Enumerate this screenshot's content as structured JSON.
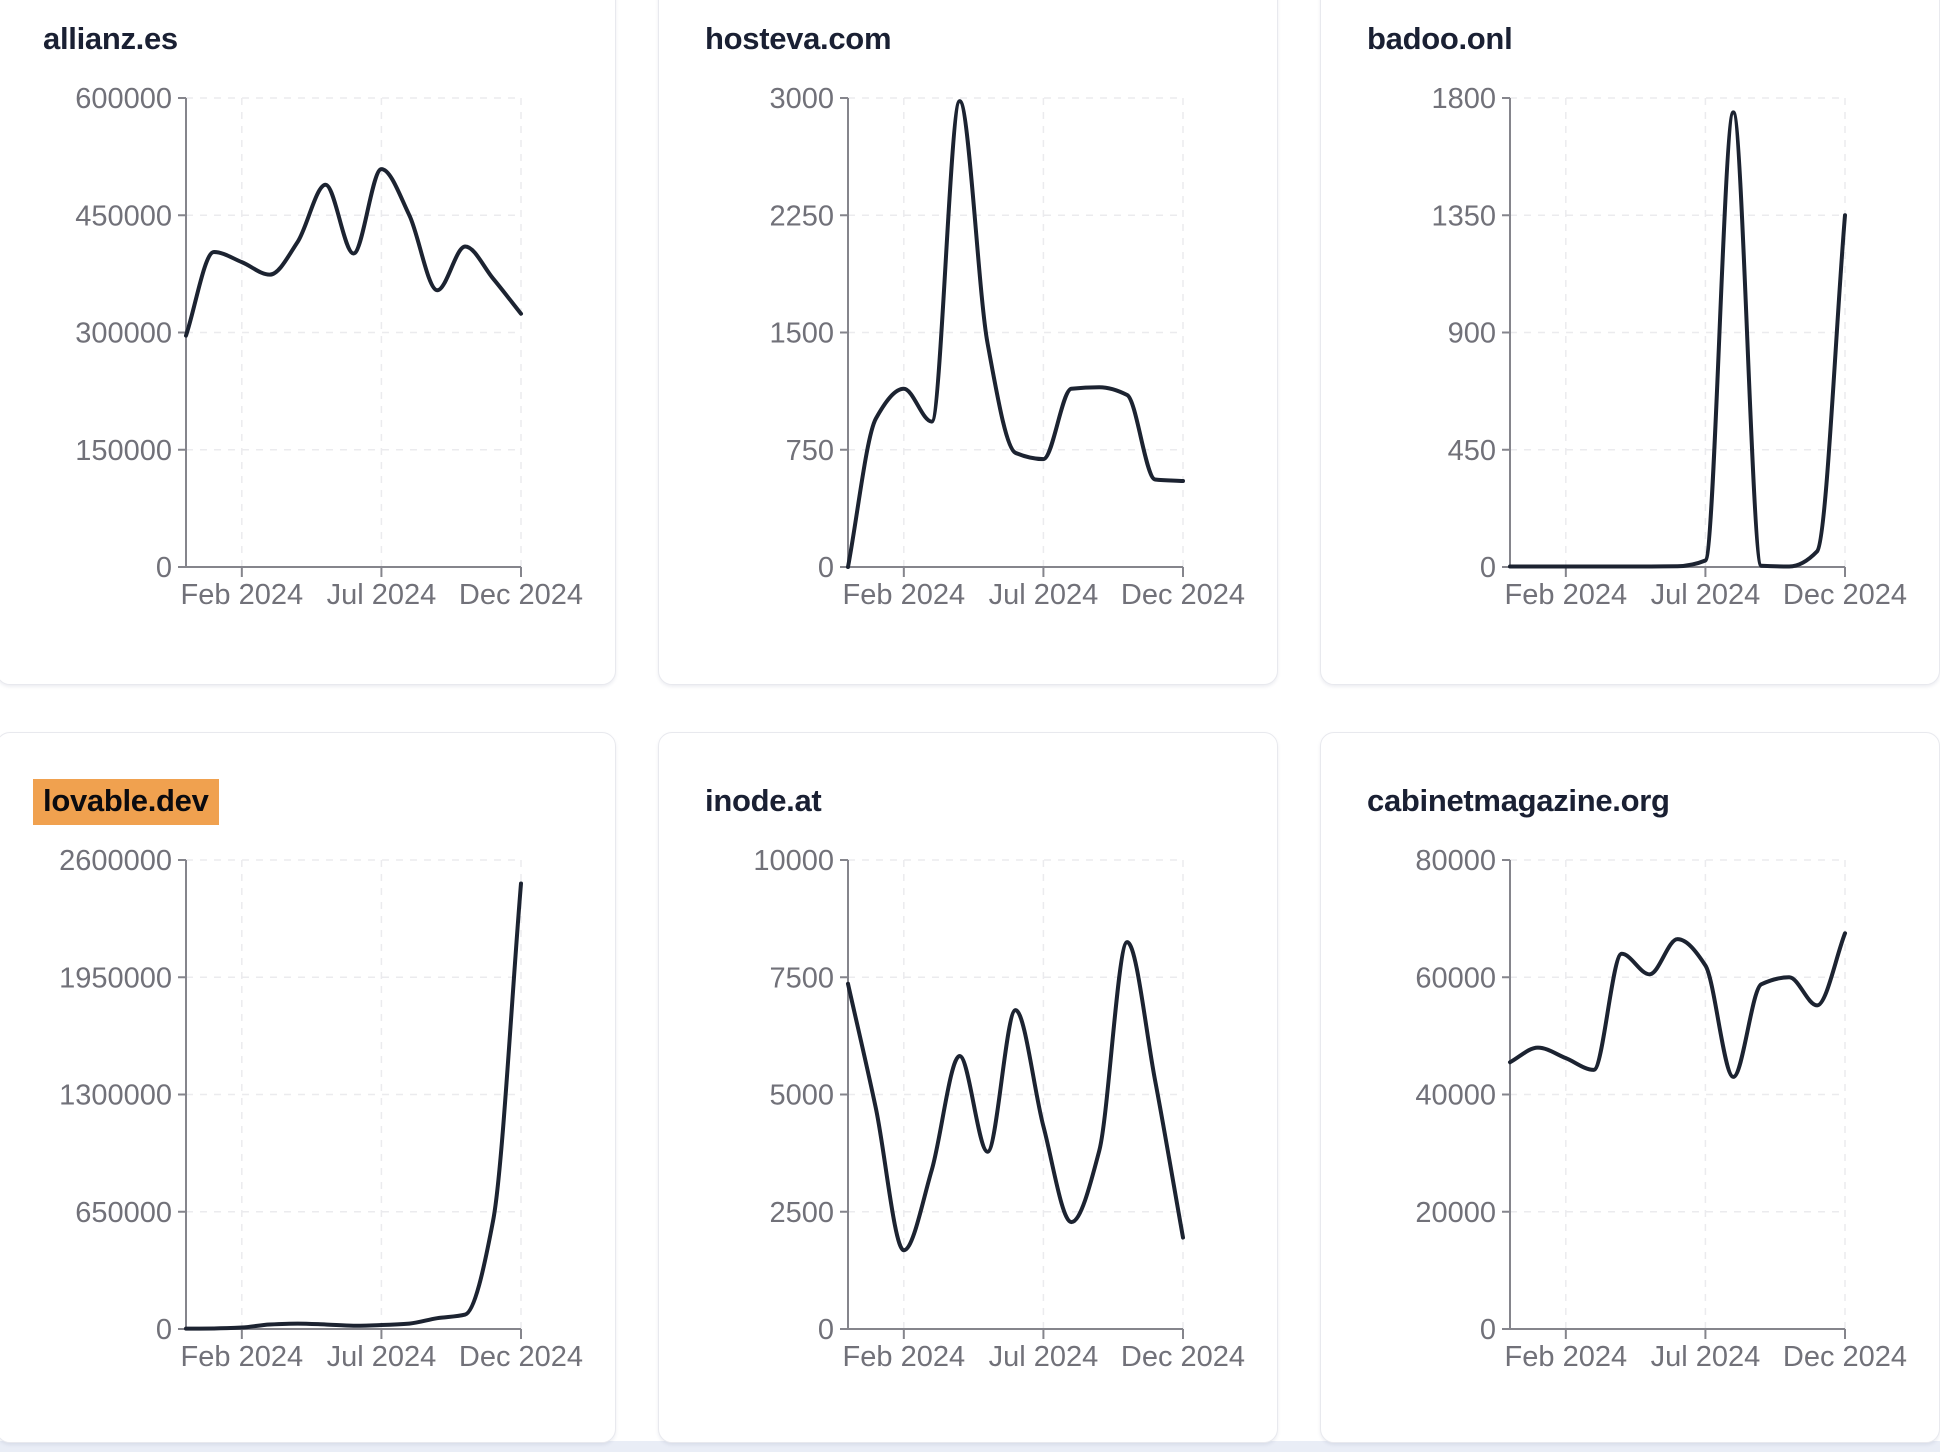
{
  "page": {
    "kind": "traffic-dashboard",
    "bottom_strip_color": "#e9edf6"
  },
  "colors": {
    "line": "#1c2331",
    "grid": "#ebebee",
    "axis": "#85858c",
    "tick_text": "#717179",
    "title_text": "#1a2033",
    "card_border": "#e8e9ee",
    "card_background": "#ffffff",
    "highlight_background": "#f0a14f"
  },
  "chart_data": [
    {
      "type": "line",
      "title": "allianz.es",
      "highlighted": false,
      "x": [
        "Dec 2023",
        "Jan 2024",
        "Feb 2024",
        "Mar 2024",
        "Apr 2024",
        "May 2024",
        "Jun 2024",
        "Jul 2024",
        "Aug 2024",
        "Sep 2024",
        "Oct 2024",
        "Nov 2024",
        "Dec 2024"
      ],
      "values": [
        296000,
        403000,
        390000,
        374000,
        416000,
        489000,
        401000,
        509000,
        450000,
        354000,
        410000,
        369000,
        324000
      ],
      "ylim": [
        0,
        600000
      ],
      "y_ticks": [
        0,
        150000,
        300000,
        450000,
        600000
      ],
      "x_tick_labels": [
        "Feb 2024",
        "Jul 2024",
        "Dec 2024"
      ],
      "grid": "dashed",
      "legend": "none"
    },
    {
      "type": "line",
      "title": "hosteva.com",
      "highlighted": false,
      "x": [
        "Dec 2023",
        "Jan 2024",
        "Feb 2024",
        "Mar 2024",
        "Apr 2024",
        "May 2024",
        "Jun 2024",
        "Jul 2024",
        "Aug 2024",
        "Sep 2024",
        "Oct 2024",
        "Nov 2024",
        "Dec 2024"
      ],
      "values": [
        0,
        950,
        1140,
        930,
        2980,
        1430,
        730,
        690,
        1140,
        1150,
        1100,
        560,
        550
      ],
      "ylim": [
        0,
        3000
      ],
      "y_ticks": [
        0,
        750,
        1500,
        2250,
        3000
      ],
      "x_tick_labels": [
        "Feb 2024",
        "Jul 2024",
        "Dec 2024"
      ],
      "grid": "dashed",
      "legend": "none"
    },
    {
      "type": "line",
      "title": "badoo.onl",
      "highlighted": false,
      "x": [
        "Dec 2023",
        "Jan 2024",
        "Feb 2024",
        "Mar 2024",
        "Apr 2024",
        "May 2024",
        "Jun 2024",
        "Jul 2024",
        "Aug 2024",
        "Sep 2024",
        "Oct 2024",
        "Nov 2024",
        "Dec 2024"
      ],
      "values": [
        2,
        2,
        2,
        2,
        2,
        2,
        3,
        25,
        1745,
        5,
        2,
        60,
        1350
      ],
      "ylim": [
        0,
        1800
      ],
      "y_ticks": [
        0,
        450,
        900,
        1350,
        1800
      ],
      "x_tick_labels": [
        "Feb 2024",
        "Jul 2024",
        "Dec 2024"
      ],
      "grid": "dashed",
      "legend": "none"
    },
    {
      "type": "line",
      "title": "lovable.dev",
      "highlighted": true,
      "x": [
        "Dec 2023",
        "Jan 2024",
        "Feb 2024",
        "Mar 2024",
        "Apr 2024",
        "May 2024",
        "Jun 2024",
        "Jul 2024",
        "Aug 2024",
        "Sep 2024",
        "Oct 2024",
        "Nov 2024",
        "Dec 2024"
      ],
      "values": [
        2000,
        3000,
        8000,
        25000,
        30000,
        25000,
        18000,
        22000,
        30000,
        60000,
        80000,
        600000,
        2470000
      ],
      "ylim": [
        0,
        2600000
      ],
      "y_ticks": [
        0,
        650000,
        1300000,
        1950000,
        2600000
      ],
      "x_tick_labels": [
        "Feb 2024",
        "Jul 2024",
        "Dec 2024"
      ],
      "grid": "dashed",
      "legend": "none"
    },
    {
      "type": "line",
      "title": "inode.at",
      "highlighted": false,
      "x": [
        "Dec 2023",
        "Jan 2024",
        "Feb 2024",
        "Mar 2024",
        "Apr 2024",
        "May 2024",
        "Jun 2024",
        "Jul 2024",
        "Aug 2024",
        "Sep 2024",
        "Oct 2024",
        "Nov 2024",
        "Dec 2024"
      ],
      "values": [
        7360,
        4700,
        1680,
        3390,
        5820,
        3780,
        6800,
        4320,
        2280,
        3800,
        8250,
        5300,
        1950
      ],
      "ylim": [
        0,
        10000
      ],
      "y_ticks": [
        0,
        2500,
        5000,
        7500,
        10000
      ],
      "x_tick_labels": [
        "Feb 2024",
        "Jul 2024",
        "Dec 2024"
      ],
      "grid": "dashed",
      "legend": "none"
    },
    {
      "type": "line",
      "title": "cabinetmagazine.org",
      "highlighted": false,
      "x": [
        "Dec 2023",
        "Jan 2024",
        "Feb 2024",
        "Mar 2024",
        "Apr 2024",
        "May 2024",
        "Jun 2024",
        "Jul 2024",
        "Aug 2024",
        "Sep 2024",
        "Oct 2024",
        "Nov 2024",
        "Dec 2024"
      ],
      "values": [
        45500,
        48000,
        46200,
        44200,
        64000,
        60500,
        66500,
        62000,
        43000,
        58800,
        60000,
        55200,
        67500
      ],
      "ylim": [
        0,
        80000
      ],
      "y_ticks": [
        0,
        20000,
        40000,
        60000,
        80000
      ],
      "x_tick_labels": [
        "Feb 2024",
        "Jul 2024",
        "Dec 2024"
      ],
      "grid": "dashed",
      "legend": "none"
    }
  ]
}
